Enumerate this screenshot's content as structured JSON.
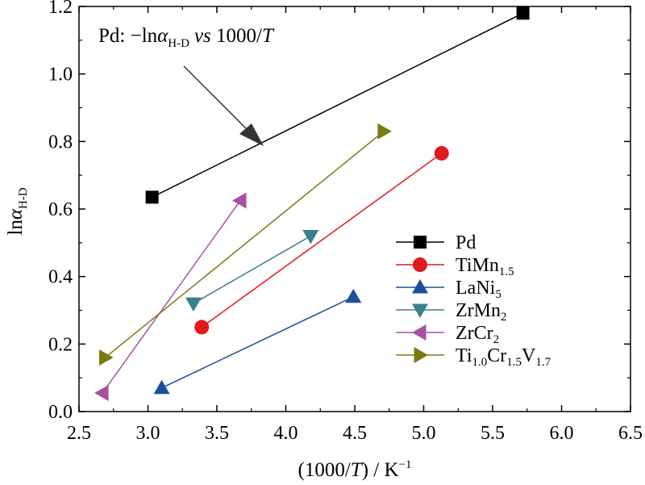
{
  "chart_data": {
    "type": "line",
    "xlabel": {
      "prefix": "(1000/",
      "italic": "T",
      "suffix": ") / K",
      "sup": "−1"
    },
    "ylabel": {
      "prefix": "ln",
      "italic": "α",
      "sub": "H-D"
    },
    "xlim": [
      2.5,
      6.5
    ],
    "ylim": [
      0.0,
      1.2
    ],
    "xticks": [
      "2.5",
      "3.0",
      "3.5",
      "4.0",
      "4.5",
      "5.0",
      "5.5",
      "6.0",
      "6.5"
    ],
    "yticks": [
      "0.0",
      "0.2",
      "0.4",
      "0.6",
      "0.8",
      "1.0",
      "1.2"
    ],
    "grid": false,
    "legend_position": "bottom-right",
    "annotation": {
      "pre": "Pd: −ln",
      "alpha": "α",
      "sub": "H-D",
      "vs": "vs",
      "post": " 1000/",
      "T": "T"
    },
    "series": [
      {
        "name": "Pd",
        "parts": [
          [
            "Pd",
            ""
          ]
        ],
        "marker": "square",
        "color": "#000000",
        "x": [
          3.03,
          5.72
        ],
        "y": [
          0.635,
          1.18
        ]
      },
      {
        "name": "TiMn1.5",
        "parts": [
          [
            "TiMn",
            "1.5"
          ]
        ],
        "marker": "circle",
        "color": "#e0191b",
        "x": [
          3.39,
          5.13
        ],
        "y": [
          0.25,
          0.765
        ]
      },
      {
        "name": "LaNi5",
        "parts": [
          [
            "LaNi",
            "5"
          ]
        ],
        "marker": "triangle-up",
        "color": "#1f4e9e",
        "x": [
          3.1,
          4.49
        ],
        "y": [
          0.07,
          0.34
        ]
      },
      {
        "name": "ZrMn2",
        "parts": [
          [
            "ZrMn",
            "2"
          ]
        ],
        "marker": "triangle-down",
        "color": "#3a8088",
        "x": [
          3.33,
          4.18
        ],
        "y": [
          0.32,
          0.52
        ]
      },
      {
        "name": "ZrCr2",
        "parts": [
          [
            "ZrCr",
            "2"
          ]
        ],
        "marker": "triangle-left",
        "color": "#a8529f",
        "x": [
          2.67,
          3.67
        ],
        "y": [
          0.055,
          0.625
        ]
      },
      {
        "name": "Ti1.0Cr1.5V1.7",
        "parts": [
          [
            "Ti",
            "1.0"
          ],
          [
            "Cr",
            "1.5"
          ],
          [
            "V",
            "1.7"
          ]
        ],
        "marker": "triangle-right",
        "color": "#7a7a12",
        "x": [
          2.69,
          4.71
        ],
        "y": [
          0.16,
          0.83
        ]
      }
    ]
  }
}
